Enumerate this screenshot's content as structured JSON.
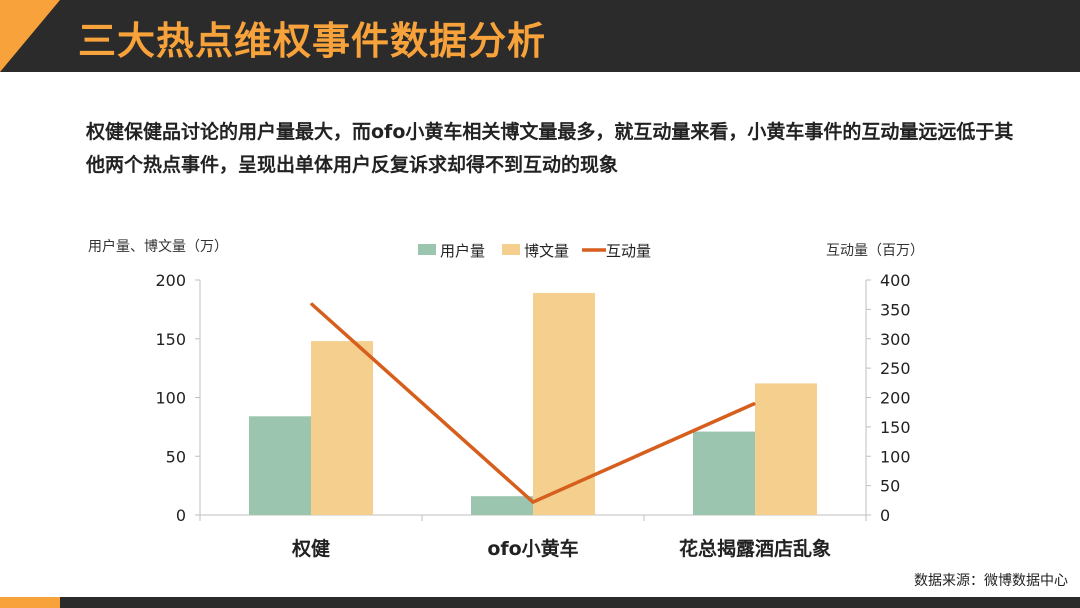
{
  "title": "三大热点维权事件数据分析",
  "description": "权健保健品讨论的用户量最大，而ofo小黄车相关博文量最多，就互动量来看，小黄车事件的互动量远远低于其他两个热点事件，呈现出单体用户反复诉求却得不到互动的现象",
  "source": "数据来源：微博数据中心",
  "colors": {
    "header_bg": "#2b2b2b",
    "accent": "#f7a23a",
    "users": "#9cc5b0",
    "posts": "#f5cf8e",
    "interactions": "#d65f1e"
  },
  "chart_data": {
    "type": "bar",
    "categories": [
      "权健",
      "ofo小黄车",
      "花总揭露酒店乱象"
    ],
    "series": [
      {
        "name": "用户量",
        "type": "bar",
        "axis": "left",
        "values": [
          84,
          16,
          71
        ]
      },
      {
        "name": "博文量",
        "type": "bar",
        "axis": "left",
        "values": [
          148,
          189,
          112
        ]
      },
      {
        "name": "互动量",
        "type": "line",
        "axis": "right",
        "values": [
          360,
          22,
          190
        ]
      }
    ],
    "ylabel": "用户量、博文量（万）",
    "y2label": "互动量（百万）",
    "ylim": [
      0,
      200
    ],
    "yticks": [
      0,
      50,
      100,
      150,
      200
    ],
    "y2lim": [
      0,
      400
    ],
    "y2ticks": [
      0,
      50,
      100,
      150,
      200,
      250,
      300,
      350,
      400
    ],
    "legend": "top-center"
  }
}
